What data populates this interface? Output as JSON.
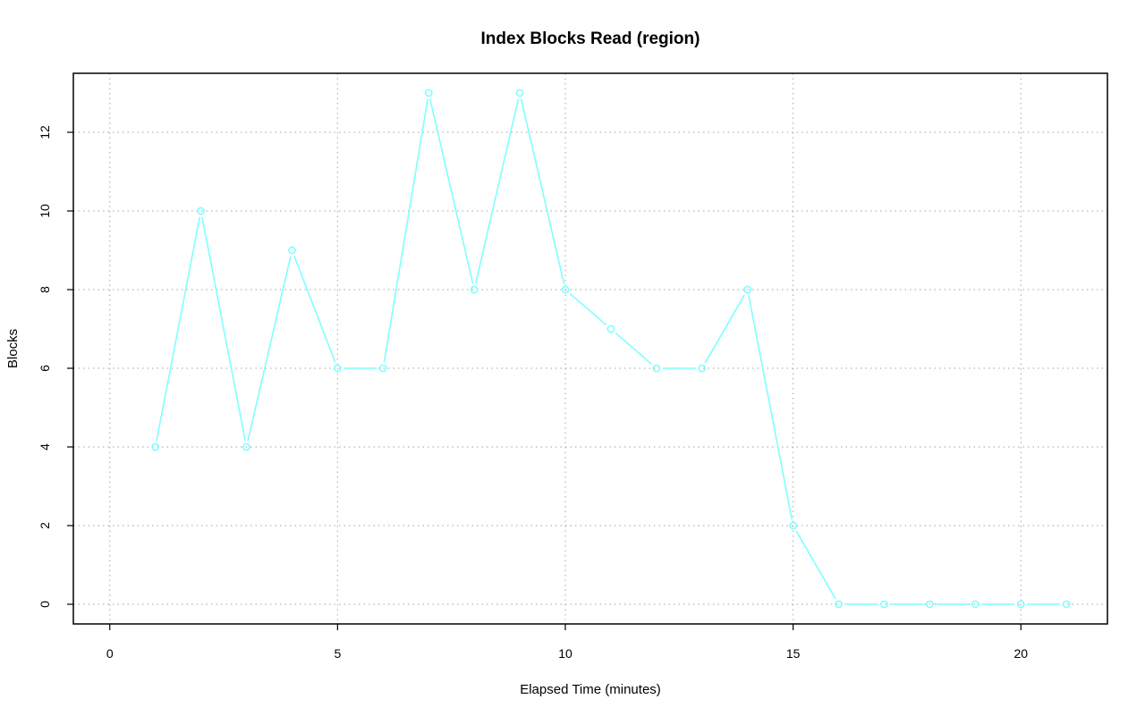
{
  "chart_data": {
    "type": "line",
    "title": "Index Blocks Read (region)",
    "xlabel": "Elapsed Time (minutes)",
    "ylabel": "Blocks",
    "xlim": [
      -0.8,
      21.9
    ],
    "ylim": [
      -0.5,
      13.5
    ],
    "x_ticks": [
      0,
      5,
      10,
      15,
      20
    ],
    "y_ticks": [
      0,
      2,
      4,
      6,
      8,
      10,
      12
    ],
    "grid": true,
    "series": [
      {
        "color": "#7fffff",
        "marker": "open-circle",
        "x": [
          1,
          2,
          3,
          4,
          5,
          6,
          7,
          8,
          9,
          10,
          11,
          12,
          13,
          14,
          15,
          16,
          17,
          18,
          19,
          20,
          21
        ],
        "y": [
          4,
          10,
          4,
          9,
          6,
          6,
          13,
          8,
          13,
          8,
          7,
          6,
          6,
          8,
          2,
          0,
          0,
          0,
          0,
          0,
          0
        ]
      }
    ]
  }
}
